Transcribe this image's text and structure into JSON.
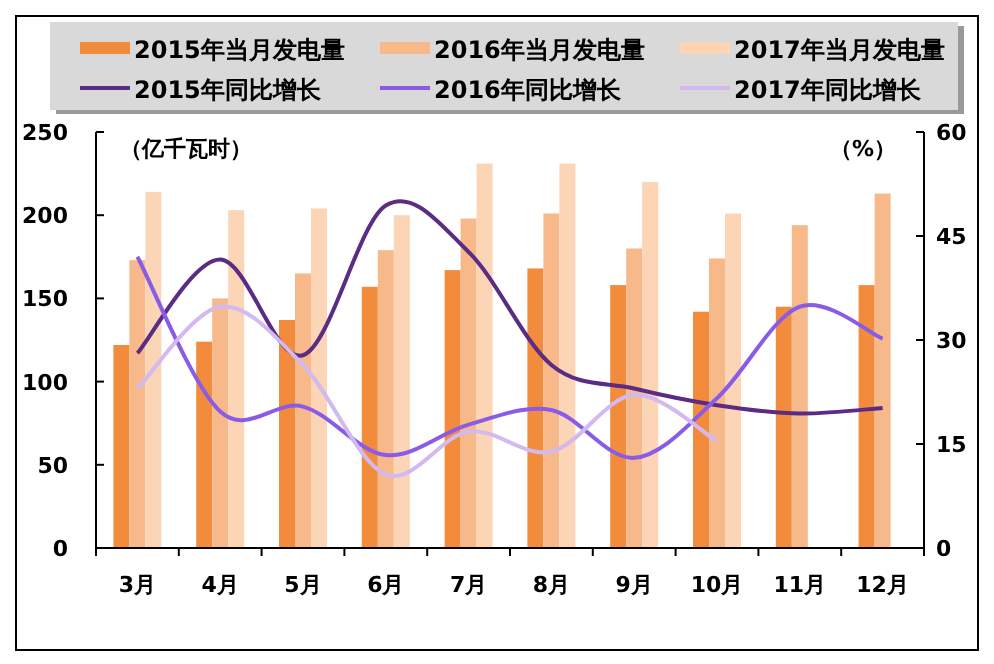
{
  "chart_data": {
    "type": "bar",
    "ylabel": "（亿千瓦时）",
    "y2label": "（%）",
    "categories": [
      "3月",
      "4月",
      "5月",
      "6月",
      "7月",
      "8月",
      "9月",
      "10月",
      "11月",
      "12月"
    ],
    "series": [
      {
        "name": "2015年当月发电量",
        "color": "#f28c3c",
        "values": [
          122,
          124,
          137,
          157,
          167,
          168,
          158,
          142,
          145,
          158
        ]
      },
      {
        "name": "2016年当月发电量",
        "color": "#f8b98a",
        "values": [
          173,
          150,
          165,
          179,
          198,
          201,
          180,
          174,
          194,
          213
        ]
      },
      {
        "name": "2017年当月发电量",
        "color": "#fbd5b5",
        "values": [
          214,
          203,
          204,
          200,
          231,
          231,
          220,
          201,
          null,
          null
        ]
      },
      {
        "name": "2015年同比增长",
        "type": "line",
        "axis": "y2",
        "color": "#5b2c83",
        "values": [
          28.1,
          41.6,
          27.8,
          49.4,
          42.7,
          26.4,
          23.0,
          20.6,
          19.4,
          20.2
        ]
      },
      {
        "name": "2016年同比增长",
        "type": "line",
        "axis": "y2",
        "color": "#8a5ce6",
        "values": [
          42.0,
          19.7,
          20.4,
          13.4,
          17.8,
          19.9,
          13.0,
          21.6,
          34.8,
          30.2
        ]
      },
      {
        "name": "2017年同比增长",
        "type": "line",
        "axis": "y2",
        "color": "#d2b9ef",
        "values": [
          23.0,
          34.8,
          26.4,
          10.6,
          16.8,
          13.9,
          22.1,
          15.4,
          null,
          null
        ]
      }
    ],
    "ylim": [
      0,
      250
    ],
    "yticks": [
      0,
      50,
      100,
      150,
      200,
      250
    ],
    "y2lim": [
      0,
      60
    ],
    "y2ticks": [
      0,
      15,
      30,
      45,
      60
    ],
    "legend": "top",
    "grid": false
  }
}
